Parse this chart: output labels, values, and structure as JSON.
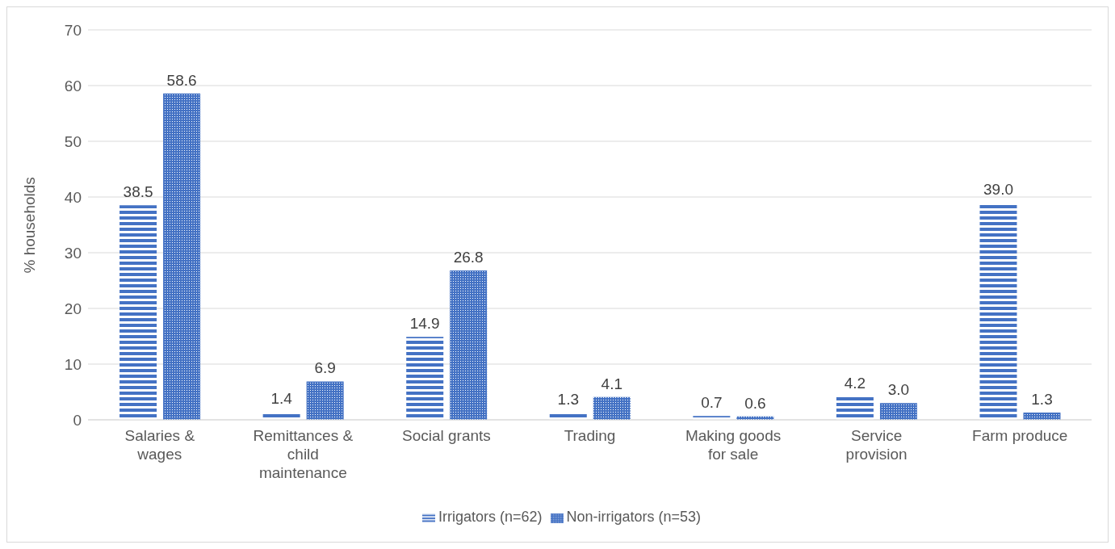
{
  "chart_data": {
    "type": "bar",
    "ylabel": "% households",
    "categories": [
      "Salaries & wages",
      "Remittances & child maintenance",
      "Social grants",
      "Trading",
      "Making goods for sale",
      "Service provision",
      "Farm produce"
    ],
    "series": [
      {
        "name": "Irrigators (n=62)",
        "color": "#4472c4",
        "values": [
          38.5,
          1.4,
          14.9,
          1.3,
          0.7,
          4.2,
          39.0
        ],
        "value_labels": [
          "38.5",
          "1.4",
          "14.9",
          "1.3",
          "0.7",
          "4.2",
          "39.0"
        ]
      },
      {
        "name": "Non-irrigators (n=53)",
        "color": "#4472c4",
        "values": [
          58.6,
          6.9,
          26.8,
          4.1,
          0.6,
          3.0,
          1.3
        ],
        "value_labels": [
          "58.6",
          "6.9",
          "26.8",
          "4.1",
          "0.6",
          "3.0",
          "1.3"
        ]
      }
    ],
    "ylim": [
      0,
      70
    ],
    "yticks": [
      0,
      10,
      20,
      30,
      40,
      50,
      60,
      70
    ],
    "grid": "y",
    "legend": "bottom"
  }
}
